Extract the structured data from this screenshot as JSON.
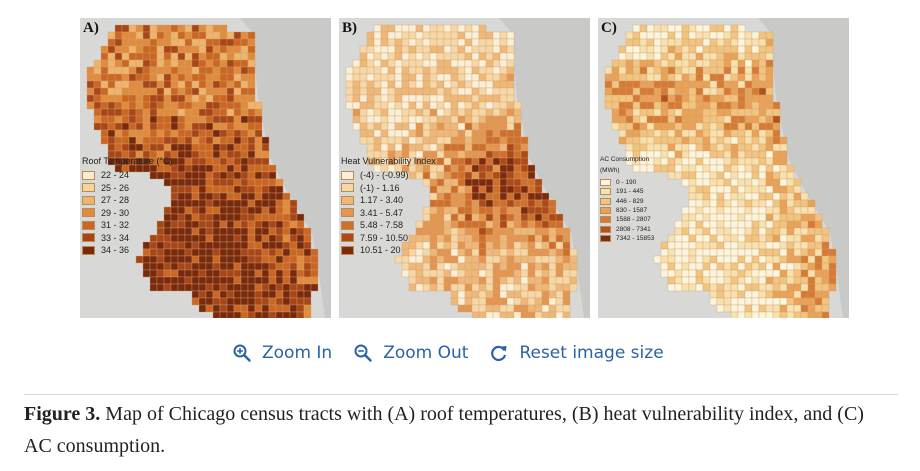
{
  "panels": [
    {
      "letter": "A)",
      "legend_title": "Roof Temperature (°C)",
      "legend": [
        {
          "label": "22 - 24",
          "color": "#fbeccd"
        },
        {
          "label": "25 - 26",
          "color": "#f6d49c"
        },
        {
          "label": "27 - 28",
          "color": "#efb46b"
        },
        {
          "label": "29 - 30",
          "color": "#e08c3c"
        },
        {
          "label": "31 - 32",
          "color": "#cb6722"
        },
        {
          "label": "33 - 34",
          "color": "#a84617"
        },
        {
          "label": "34 - 36",
          "color": "#7a2a0c"
        }
      ]
    },
    {
      "letter": "B)",
      "legend_title": "Heat Vulnerability Index",
      "legend": [
        {
          "label": "(-4) - (-0.99)",
          "color": "#fcefd6"
        },
        {
          "label": "(-1) - 1.16",
          "color": "#f7d7a6"
        },
        {
          "label": "1.17 - 3.40",
          "color": "#f0b878"
        },
        {
          "label": "3.41 - 5.47",
          "color": "#e49650"
        },
        {
          "label": "5.48 - 7.58",
          "color": "#cf6f2c"
        },
        {
          "label": "7.59 - 10.50",
          "color": "#ad4a18"
        },
        {
          "label": "10.51 - 20",
          "color": "#7d2b0c"
        }
      ]
    },
    {
      "letter": "C)",
      "legend_title": "AC Consumption",
      "legend_unit": "(MWh)",
      "legend": [
        {
          "label": "0 - 190",
          "color": "#fdf4dc"
        },
        {
          "label": "191 - 445",
          "color": "#f9e1ae"
        },
        {
          "label": "446 - 829",
          "color": "#f3c47f"
        },
        {
          "label": "830 - 1587",
          "color": "#e9a257"
        },
        {
          "label": "1588 - 2807",
          "color": "#d77a33"
        },
        {
          "label": "2808 - 7341",
          "color": "#b4521c"
        },
        {
          "label": "7342 - 15853",
          "color": "#7e2d0d"
        }
      ]
    }
  ],
  "toolbar": {
    "zoom_in": "Zoom In",
    "zoom_out": "Zoom Out",
    "reset": "Reset image size"
  },
  "caption": {
    "label": "Figure 3.",
    "text": " Map of Chicago census tracts with (A) roof temperatures, (B) heat vulnerability index, and (C) AC consumption."
  },
  "colors": {
    "link": "#2a62a6",
    "map_background": "#d8d8d6",
    "lake": "#c9c9c7"
  }
}
